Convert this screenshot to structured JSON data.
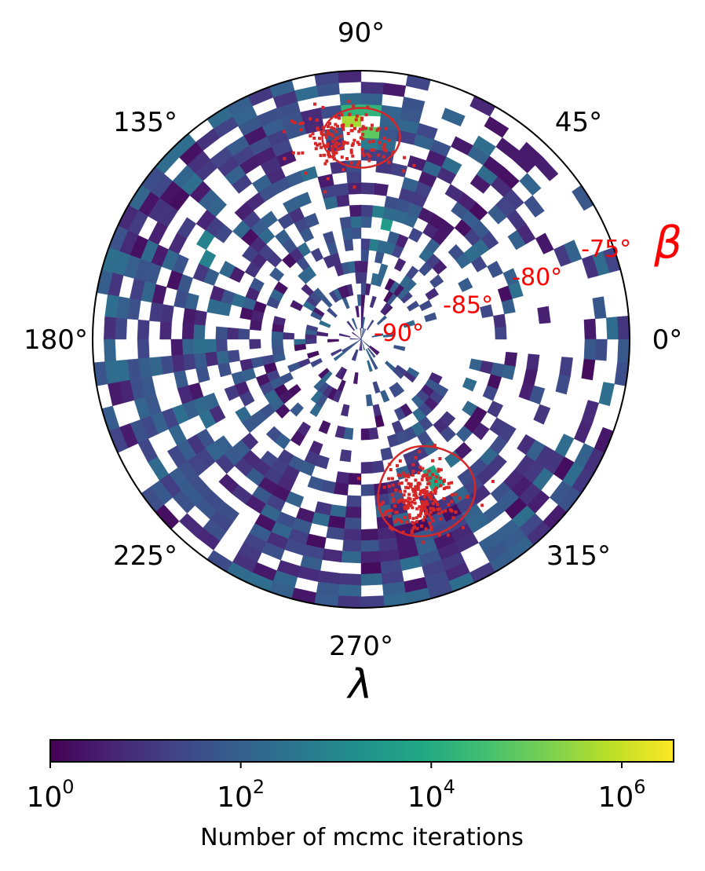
{
  "chart_data": {
    "type": "heatmap",
    "projection": "polar",
    "angular_axis": {
      "label": "λ",
      "ticks": [
        "0°",
        "45°",
        "90°",
        "135°",
        "180°",
        "225°",
        "270°",
        "315°"
      ],
      "tick_values_deg": [
        0,
        45,
        90,
        135,
        180,
        225,
        270,
        315
      ]
    },
    "radial_axis": {
      "label": "β",
      "label_color": "#ff0000",
      "ticks": [
        "-90°",
        "-85°",
        "-80°",
        "-75°"
      ],
      "tick_values_deg": [
        -90,
        -85,
        -80,
        -75
      ],
      "range": [
        -90,
        -72
      ],
      "label_angle_deg": 22
    },
    "colorbar": {
      "label": "Number of mcmc iterations",
      "scale": "log",
      "range": [
        1,
        3500000
      ],
      "colormap": "viridis",
      "ticks": [
        {
          "base": "10",
          "exp": "0",
          "value": 1
        },
        {
          "base": "10",
          "exp": "2",
          "value": 100
        },
        {
          "base": "10",
          "exp": "4",
          "value": 10000
        },
        {
          "base": "10",
          "exp": "6",
          "value": 1000000
        }
      ]
    },
    "overlay": {
      "color": "#d62728",
      "ellipses": [
        {
          "center_lambda_deg": 90,
          "center_beta_deg": -76.5,
          "extent_lambda_deg": 22,
          "extent_beta_deg": 4
        },
        {
          "center_lambda_deg": 293,
          "center_beta_deg": -79,
          "extent_lambda_deg": 34,
          "extent_beta_deg": 6
        }
      ],
      "scatter_clusters": [
        {
          "center_lambda_deg": 95,
          "center_beta_deg": -76.5,
          "count": 160
        },
        {
          "center_lambda_deg": 290,
          "center_beta_deg": -78.5,
          "count": 230
        }
      ]
    },
    "hotspots": [
      {
        "lambda_deg": 90,
        "beta_deg": -75.5,
        "iterations": 3000000
      },
      {
        "lambda_deg": 81,
        "beta_deg": -82.5,
        "iterations": 60000
      },
      {
        "lambda_deg": 300,
        "beta_deg": -79.5,
        "iterations": 40000
      },
      {
        "lambda_deg": 150,
        "beta_deg": -78,
        "iterations": 3000
      }
    ]
  }
}
